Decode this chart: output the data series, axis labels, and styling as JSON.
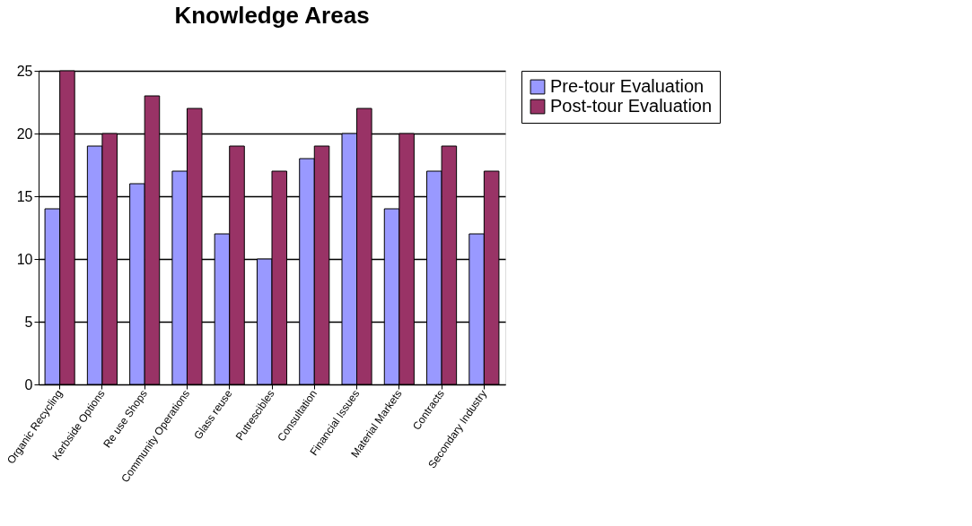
{
  "chart_data": {
    "type": "bar",
    "title": "Knowledge Areas",
    "categories": [
      "Organic Recycling",
      "Kerbside Options",
      "Re use Shops",
      "Community Operations",
      "Glass reuse",
      "Putrescibles",
      "Consultation",
      "Financial Issues",
      "Material Markets",
      "Contracts",
      "Secondary Industry"
    ],
    "series": [
      {
        "name": "Pre-tour Evaluation",
        "color": "#9999ff",
        "values": [
          14,
          19,
          16,
          17,
          12,
          10,
          18,
          20,
          14,
          17,
          12
        ]
      },
      {
        "name": "Post-tour Evaluation",
        "color": "#993366",
        "values": [
          25,
          20,
          23,
          22,
          19,
          17,
          19,
          22,
          20,
          19,
          17
        ]
      }
    ],
    "ylim": [
      0,
      25
    ],
    "yticks": [
      0,
      5,
      10,
      15,
      20,
      25
    ],
    "grid": "y",
    "legend": "right"
  }
}
